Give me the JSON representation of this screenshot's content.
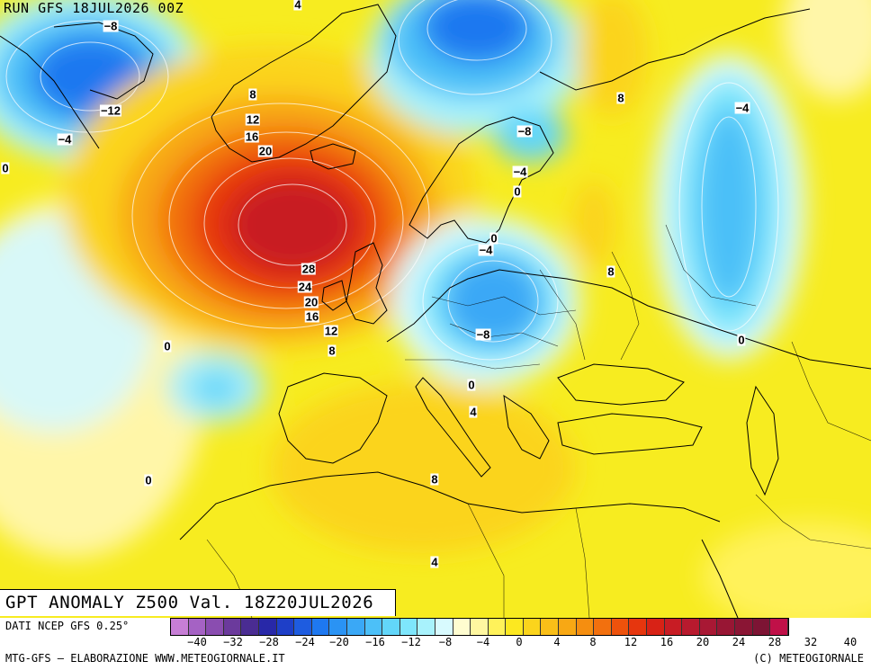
{
  "map": {
    "run_label": "RUN GFS 18JUL2026 00Z",
    "title": "GPT ANOMALY Z500 Val. 18Z20JUL2026",
    "contour_labels": [
      "4",
      "-8",
      "8",
      "-12",
      "-4",
      "12",
      "16",
      "20",
      "0",
      "-8",
      "-4",
      "0",
      "8",
      "-4",
      "0",
      "-4",
      "28",
      "24",
      "20",
      "16",
      "12",
      "8",
      "-8",
      "8",
      "0",
      "0",
      "0",
      "4",
      "0",
      "8",
      "4"
    ]
  },
  "footer": {
    "source": "DATI NCEP GFS 0.25°",
    "producer": "MTG-GFS — ELABORAZIONE WWW.METEOGIORNALE.IT",
    "copyright": "(C) METEOGIORNALE"
  },
  "colorbar": {
    "colors": [
      "#c77ed6",
      "#a562c4",
      "#8a4db0",
      "#6b3a9c",
      "#4a2c92",
      "#2828a8",
      "#1e3fc8",
      "#1e5ce0",
      "#1e78f0",
      "#2a93f4",
      "#3aa8f6",
      "#4cc0f8",
      "#62d6fa",
      "#7ee6fc",
      "#a8f2fc",
      "#d8fafe",
      "#fffdd0",
      "#fff7a0",
      "#fff25a",
      "#fce820",
      "#fbd41c",
      "#fabf18",
      "#f8a814",
      "#f58e10",
      "#f2700e",
      "#ee520c",
      "#e6360e",
      "#d82216",
      "#c81c24",
      "#b81a2e",
      "#a81834",
      "#981634",
      "#8a1534",
      "#7d1434",
      "#c01048"
    ],
    "ticks": [
      "−40",
      "−32",
      "−28",
      "−24",
      "−20",
      "−16",
      "−12",
      "−8",
      "−4",
      "0",
      "4",
      "8",
      "12",
      "16",
      "20",
      "24",
      "28",
      "32",
      "40"
    ]
  }
}
